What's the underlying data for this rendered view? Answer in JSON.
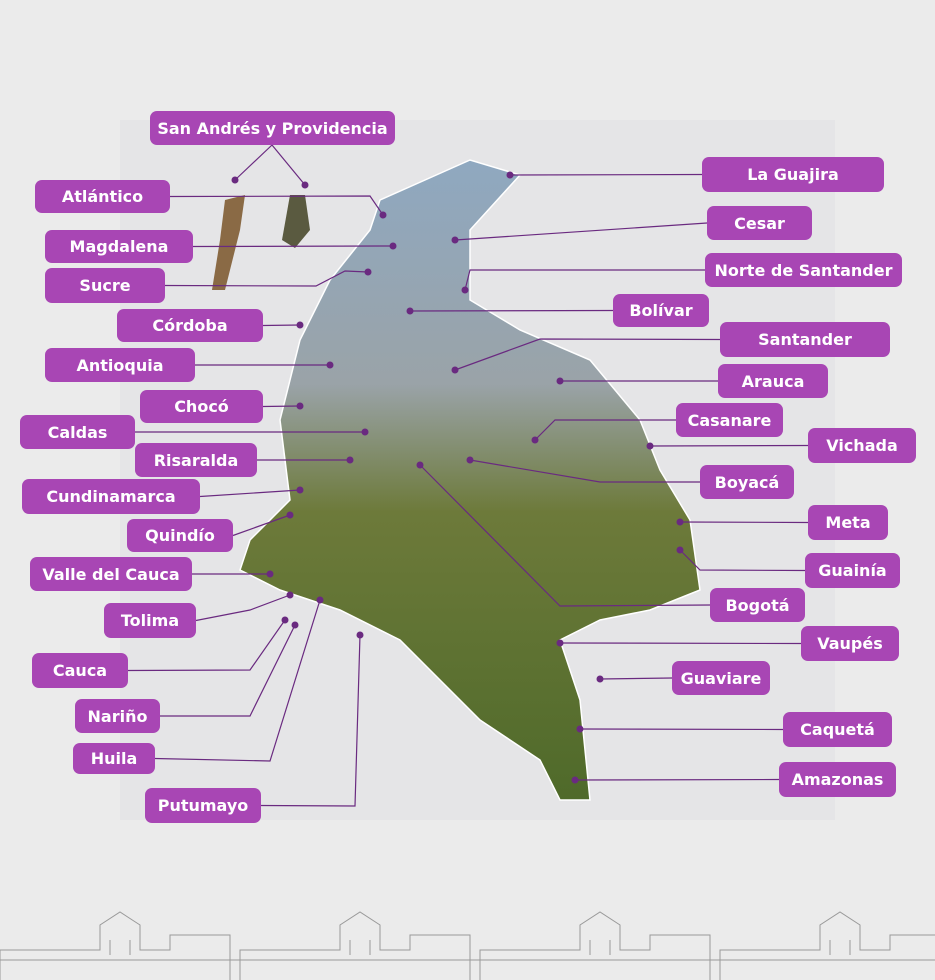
{
  "colors": {
    "label_bg": "#a846b4",
    "label_text": "#ffffff",
    "leader_line": "#6a2a80",
    "background": "#ebebeb"
  },
  "regions": [
    {
      "name": "San Andrés y Providencia"
    },
    {
      "name": "Atlántico"
    },
    {
      "name": "Magdalena"
    },
    {
      "name": "Sucre"
    },
    {
      "name": "Córdoba"
    },
    {
      "name": "Antioquia"
    },
    {
      "name": "Chocó"
    },
    {
      "name": "Caldas"
    },
    {
      "name": "Risaralda"
    },
    {
      "name": "Cundinamarca"
    },
    {
      "name": "Quindío"
    },
    {
      "name": "Valle del Cauca"
    },
    {
      "name": "Tolima"
    },
    {
      "name": "Cauca"
    },
    {
      "name": "Nariño"
    },
    {
      "name": "Huila"
    },
    {
      "name": "Putumayo"
    },
    {
      "name": "La Guajira"
    },
    {
      "name": "Cesar"
    },
    {
      "name": "Norte de Santander"
    },
    {
      "name": "Bolívar"
    },
    {
      "name": "Santander"
    },
    {
      "name": "Arauca"
    },
    {
      "name": "Casanare"
    },
    {
      "name": "Vichada"
    },
    {
      "name": "Boyacá"
    },
    {
      "name": "Meta"
    },
    {
      "name": "Guainía"
    },
    {
      "name": "Bogotá"
    },
    {
      "name": "Vaupés"
    },
    {
      "name": "Guaviare"
    },
    {
      "name": "Caquetá"
    },
    {
      "name": "Amazonas"
    }
  ]
}
